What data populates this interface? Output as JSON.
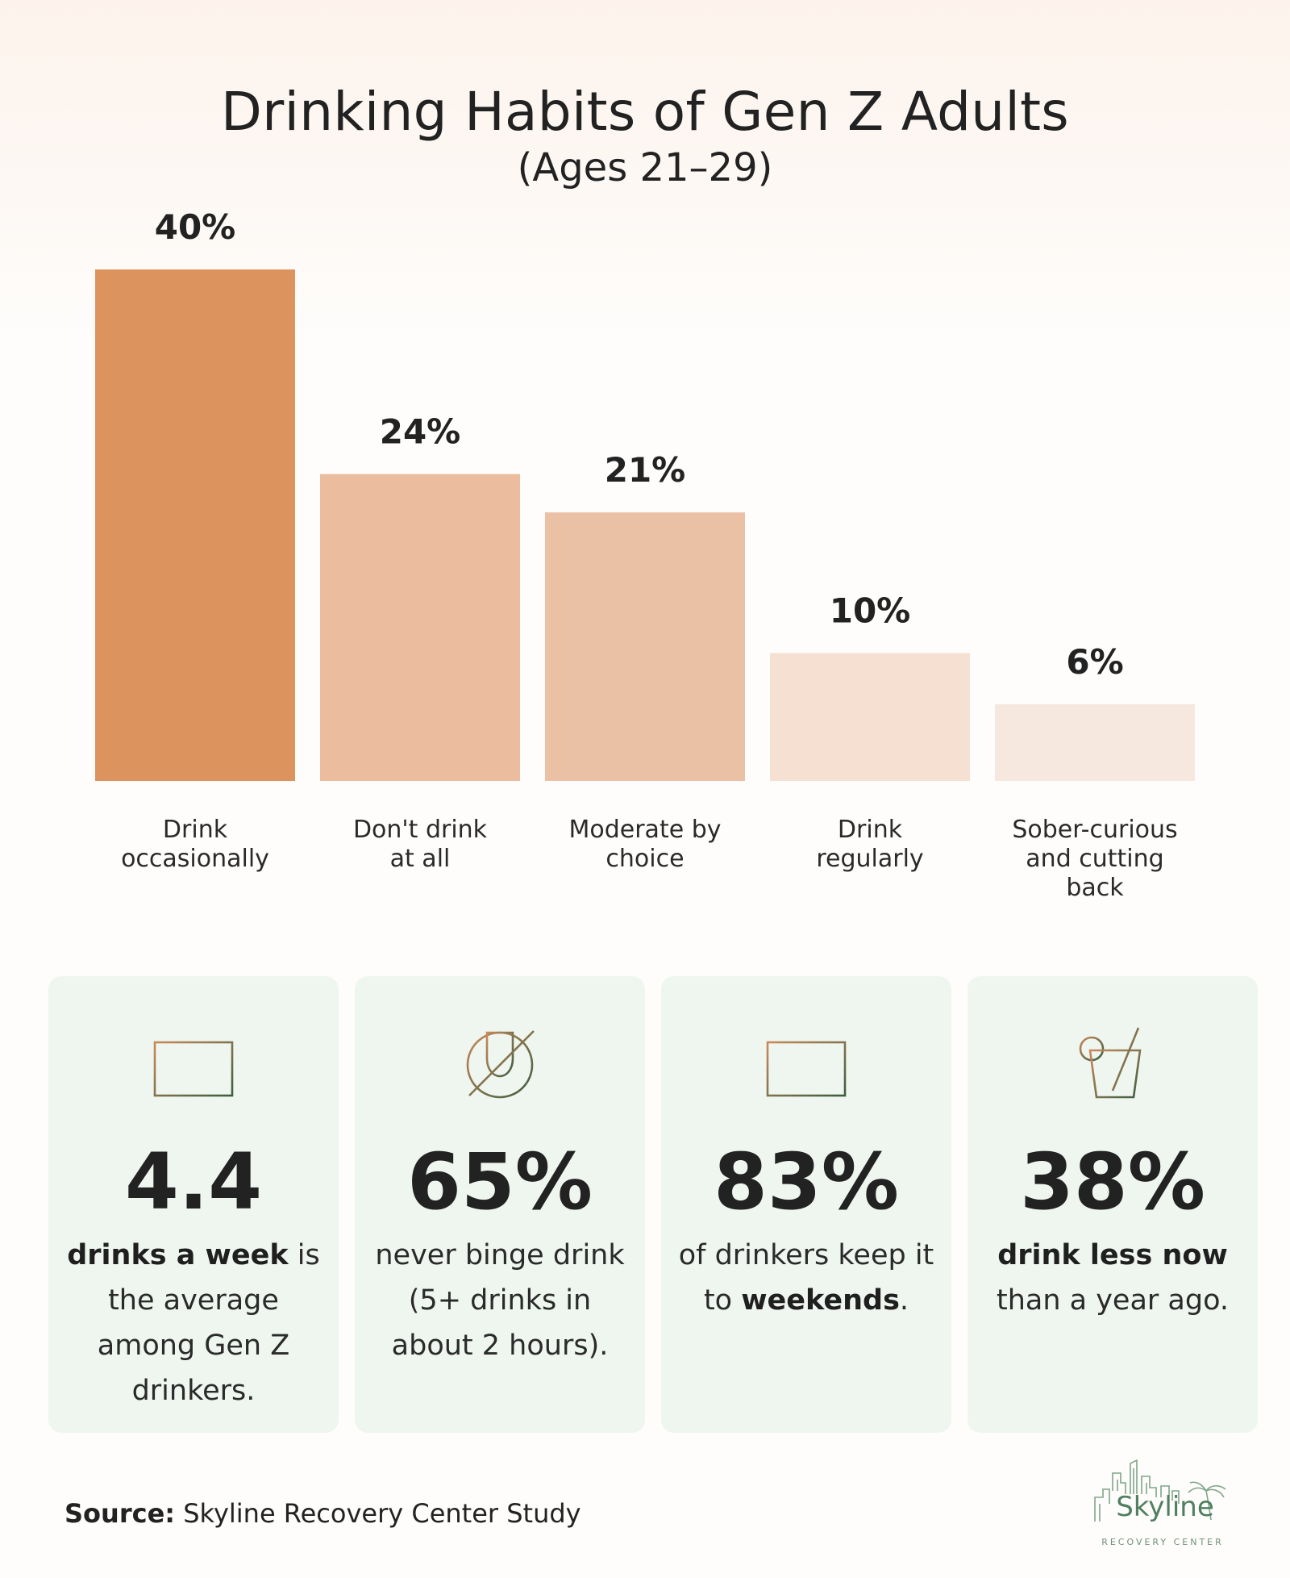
{
  "title": "Drinking Habits of Gen Z Adults",
  "subtitle": "(Ages 21–29)",
  "chart_data": {
    "type": "bar",
    "title": "Drinking Habits of Gen Z Adults",
    "subtitle": "(Ages 21–29)",
    "categories": [
      [
        "Drink",
        "occasionally"
      ],
      [
        "Don't drink",
        "at all"
      ],
      [
        "Moderate by",
        "choice"
      ],
      [
        "Drink",
        "regularly"
      ],
      [
        "Sober-curious",
        "and cutting",
        "back"
      ]
    ],
    "values": [
      40,
      24,
      21,
      10,
      6
    ],
    "value_labels": [
      "40%",
      "24%",
      "21%",
      "10%",
      "6%"
    ],
    "colors": [
      "#dd935e",
      "#ebbc9d",
      "#ebc1a5",
      "#f5e0d2",
      "#f6e8de"
    ],
    "unit": "%",
    "ylim": [
      0,
      40
    ],
    "grid": false,
    "legend": "none"
  },
  "stats": [
    {
      "icon": "calendar-icon",
      "value": "4.4",
      "text_parts": [
        {
          "text": "drinks a week",
          "bold": true
        },
        {
          "text": " is the average among Gen Z drinkers.",
          "bold": false
        }
      ]
    },
    {
      "icon": "no-wine-glass-icon",
      "value": "65%",
      "text_parts": [
        {
          "text": "never binge drink (5+ drinks in about 2 hours).",
          "bold": false
        }
      ]
    },
    {
      "icon": "calendar-icon",
      "value": "83%",
      "text_parts": [
        {
          "text": "of drinkers keep it to ",
          "bold": false
        },
        {
          "text": "weekends",
          "bold": true
        },
        {
          "text": ".",
          "bold": false
        }
      ]
    },
    {
      "icon": "cocktail-icon",
      "value": "38%",
      "text_parts": [
        {
          "text": "drink less now",
          "bold": true
        },
        {
          "text": " than a year ago.",
          "bold": false
        }
      ]
    }
  ],
  "source": {
    "label": "Source:",
    "text": "Skyline Recovery Center Study"
  },
  "logo": {
    "name": "Skyline",
    "tagline": "RECOVERY CENTER",
    "icon": "city-skyline-palm-logo"
  },
  "colors": {
    "accent_orange": "#dd935e",
    "card_bg": "#eff6f0",
    "icon_orange": "#c98a5c",
    "icon_green": "#3c5e3f",
    "logo_green": "#4f7f5e"
  }
}
